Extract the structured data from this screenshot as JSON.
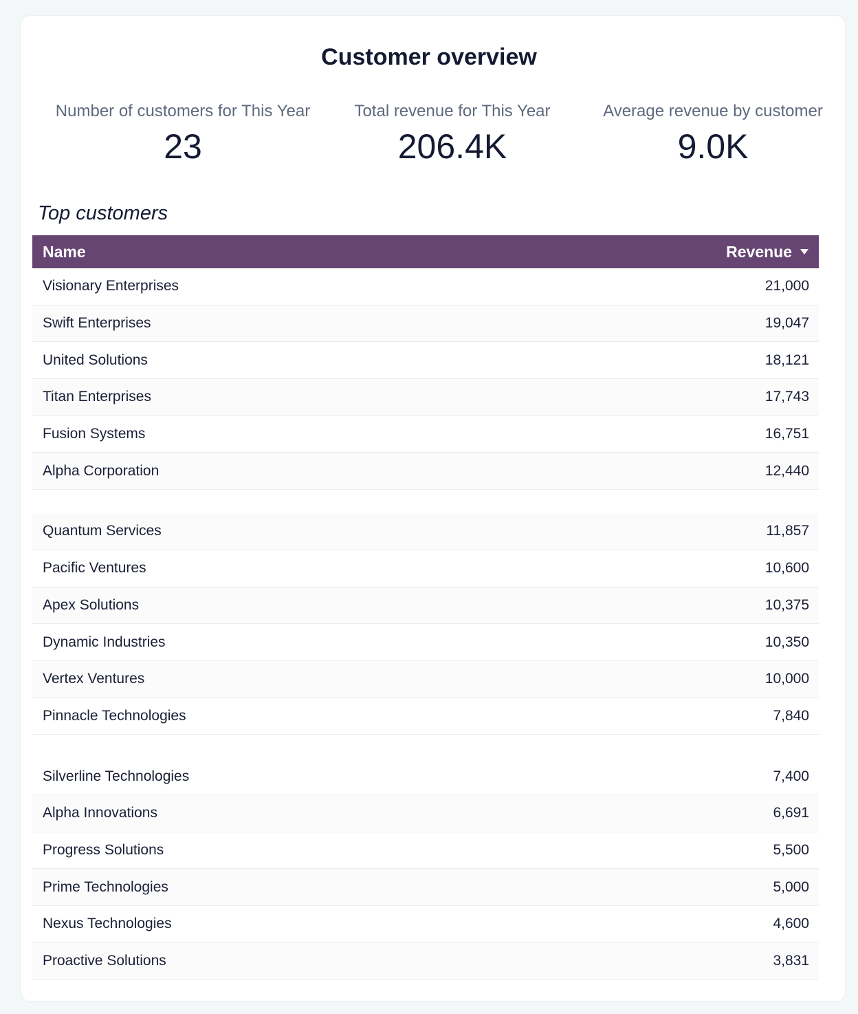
{
  "title": "Customer overview",
  "kpis": [
    {
      "label": "Number of customers for This Year",
      "value": "23"
    },
    {
      "label": "Total revenue for This Year",
      "value": "206.4K"
    },
    {
      "label": "Average revenue by customer",
      "value": "9.0K"
    }
  ],
  "section_title": "Top customers",
  "table": {
    "columns": [
      "Name",
      "Revenue"
    ],
    "sort_icon": "caret-down-icon",
    "header_color": "#674573",
    "rows": [
      {
        "name": "Visionary Enterprises",
        "revenue": "21,000"
      },
      {
        "name": "Swift Enterprises",
        "revenue": "19,047"
      },
      {
        "name": "United Solutions",
        "revenue": "18,121"
      },
      {
        "name": "Titan Enterprises",
        "revenue": "17,743"
      },
      {
        "name": "Fusion Systems",
        "revenue": "16,751"
      },
      {
        "name": "Alpha Corporation",
        "revenue": "12,440"
      },
      {
        "name": "Quantum Services",
        "revenue": "11,857"
      },
      {
        "name": "Pacific Ventures",
        "revenue": "10,600"
      },
      {
        "name": "Apex Solutions",
        "revenue": "10,375"
      },
      {
        "name": "Dynamic Industries",
        "revenue": "10,350"
      },
      {
        "name": "Vertex Ventures",
        "revenue": "10,000"
      },
      {
        "name": "Pinnacle Technologies",
        "revenue": "7,840"
      },
      {
        "name": "Silverline Technologies",
        "revenue": "7,400"
      },
      {
        "name": "Alpha Innovations",
        "revenue": "6,691"
      },
      {
        "name": "Progress Solutions",
        "revenue": "5,500"
      },
      {
        "name": "Prime Technologies",
        "revenue": "5,000"
      },
      {
        "name": "Nexus Technologies",
        "revenue": "4,600"
      },
      {
        "name": "Proactive Solutions",
        "revenue": "3,831"
      }
    ]
  }
}
